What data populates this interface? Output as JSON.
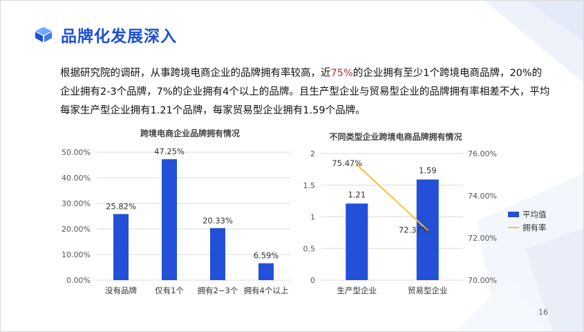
{
  "slide": {
    "title": "品牌化发展深入",
    "paragraph": {
      "before": "根据研究院的调研，从事跨境电商企业的品牌拥有率较高，近",
      "highlight": "75%",
      "after": "的企业拥有至少1个跨境电商品牌，20%的企业拥有2-3个品牌，7%的企业拥有4个以上的品牌。且生产型企业与贸易型企业的品牌拥有率相差不大，平均每家生产型企业拥有1.21个品牌，每家贸易型企业拥有1.59个品牌。"
    },
    "page_number": "16",
    "colors": {
      "title": "#1d4fd8",
      "bar": "#2350d8",
      "line": "#f5c13a",
      "highlight": "#c62828"
    },
    "icons": [
      "cube-logo-icon"
    ]
  },
  "chart_data": [
    {
      "type": "bar",
      "title": "跨境电商企业品牌拥有情况",
      "categories": [
        "没有品牌",
        "仅有1个",
        "拥有2~3个",
        "拥有4个以上"
      ],
      "values": [
        25.82,
        47.25,
        20.33,
        6.59
      ],
      "data_labels": [
        "25.82%",
        "47.25%",
        "20.33%",
        "6.59%"
      ],
      "ylim": [
        0,
        50
      ],
      "yticks": [
        0,
        10,
        20,
        30,
        40,
        50
      ],
      "ytick_labels": [
        "0.00%",
        "10.00%",
        "20.00%",
        "30.00%",
        "40.00%",
        "50.00%"
      ],
      "grid": true
    },
    {
      "type": "bar+line",
      "title": "不同类型企业跨境电商品牌拥有情况",
      "categories": [
        "生产型企业",
        "贸易型企业"
      ],
      "series": [
        {
          "name": "平均值",
          "type": "bar",
          "axis": "left",
          "values": [
            1.21,
            1.59
          ],
          "data_labels": [
            "1.21",
            "1.59"
          ]
        },
        {
          "name": "拥有率",
          "type": "line",
          "axis": "right",
          "values": [
            75.47,
            72.37
          ],
          "data_labels": [
            "75.47%",
            "72.37%"
          ]
        }
      ],
      "ylim_left": [
        0,
        2
      ],
      "yticks_left": [
        0,
        0.5,
        1,
        1.5,
        2
      ],
      "ytick_labels_left": [
        "0",
        "0.5",
        "1",
        "1.5",
        "2"
      ],
      "ylim_right": [
        70,
        76
      ],
      "yticks_right": [
        70,
        72,
        74,
        76
      ],
      "ytick_labels_right": [
        "70.00%",
        "72.00%",
        "74.00%",
        "76.00%"
      ],
      "legend": "right",
      "grid": true
    }
  ]
}
